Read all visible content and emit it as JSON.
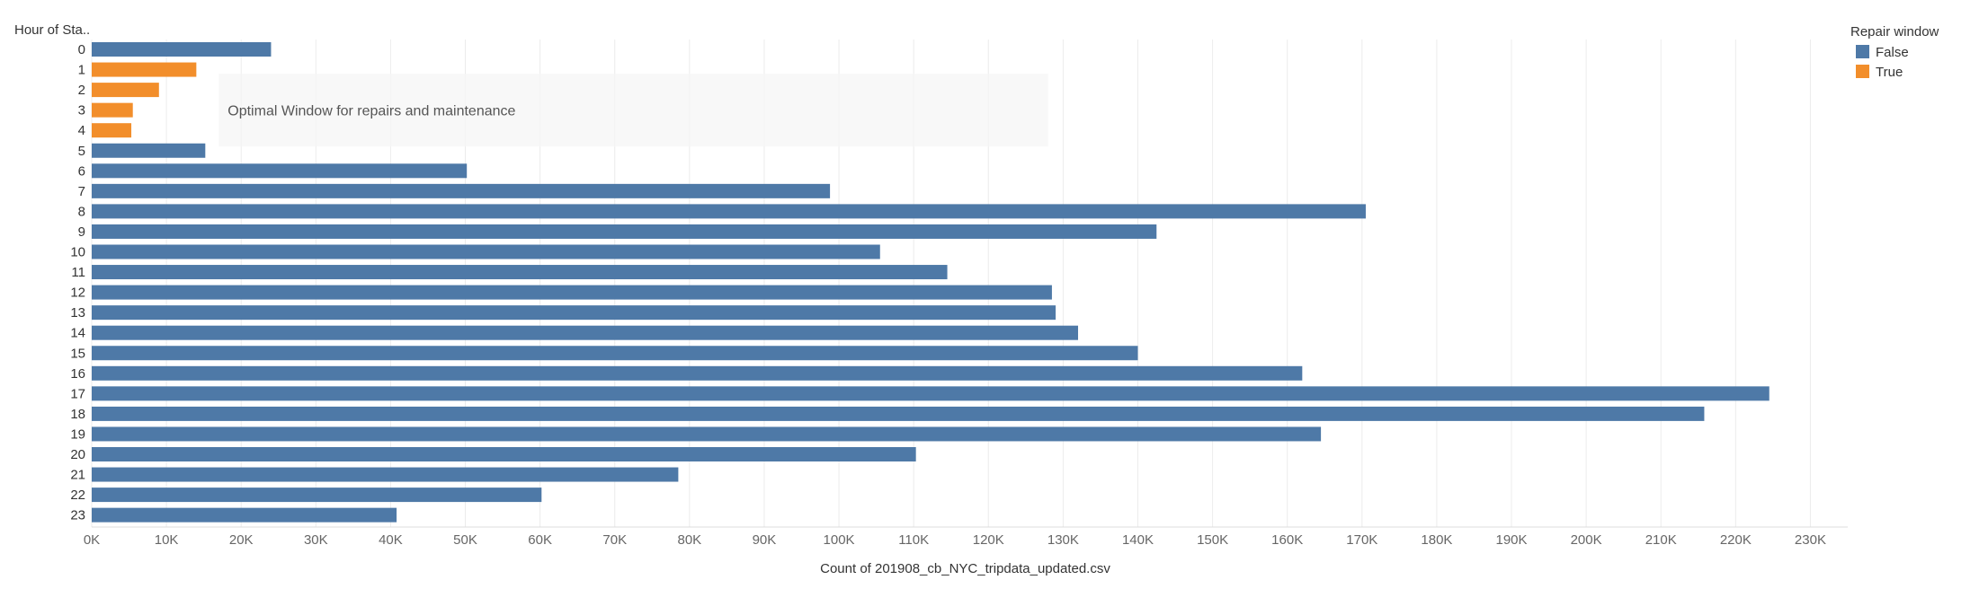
{
  "chart_data": {
    "type": "bar",
    "orientation": "horizontal",
    "y_header": "Hour of Sta..",
    "xlabel": "Count of 201908_cb_NYC_tripdata_updated.csv",
    "xlim": [
      0,
      235000
    ],
    "x_ticks": [
      0,
      10000,
      20000,
      30000,
      40000,
      50000,
      60000,
      70000,
      80000,
      90000,
      100000,
      110000,
      120000,
      130000,
      140000,
      150000,
      160000,
      170000,
      180000,
      190000,
      200000,
      210000,
      220000,
      230000
    ],
    "x_tick_labels": [
      "0K",
      "10K",
      "20K",
      "30K",
      "40K",
      "50K",
      "60K",
      "70K",
      "80K",
      "90K",
      "100K",
      "110K",
      "120K",
      "130K",
      "140K",
      "150K",
      "160K",
      "170K",
      "180K",
      "190K",
      "200K",
      "210K",
      "220K",
      "230K"
    ],
    "grid": true,
    "categories": [
      "0",
      "1",
      "2",
      "3",
      "4",
      "5",
      "6",
      "7",
      "8",
      "9",
      "10",
      "11",
      "12",
      "13",
      "14",
      "15",
      "16",
      "17",
      "18",
      "19",
      "20",
      "21",
      "22",
      "23"
    ],
    "values": [
      24000,
      14000,
      9000,
      5500,
      5300,
      15200,
      50200,
      98800,
      170500,
      142500,
      105500,
      114500,
      128500,
      129000,
      132000,
      140000,
      162000,
      224500,
      215800,
      164500,
      110300,
      78500,
      60200,
      40800
    ],
    "repair_window": [
      "False",
      "True",
      "True",
      "True",
      "True",
      "False",
      "False",
      "False",
      "False",
      "False",
      "False",
      "False",
      "False",
      "False",
      "False",
      "False",
      "False",
      "False",
      "False",
      "False",
      "False",
      "False",
      "False",
      "False"
    ],
    "annotation": {
      "text": "Optimal Window for repairs and maintenance",
      "x_start": 17000,
      "x_end": 128000,
      "category_from": "2",
      "category_to": "4"
    },
    "legend": {
      "title": "Repair window",
      "position": "top-right",
      "items": [
        {
          "label": "False",
          "color": "#4e79a7"
        },
        {
          "label": "True",
          "color": "#f28e2b"
        }
      ]
    }
  }
}
